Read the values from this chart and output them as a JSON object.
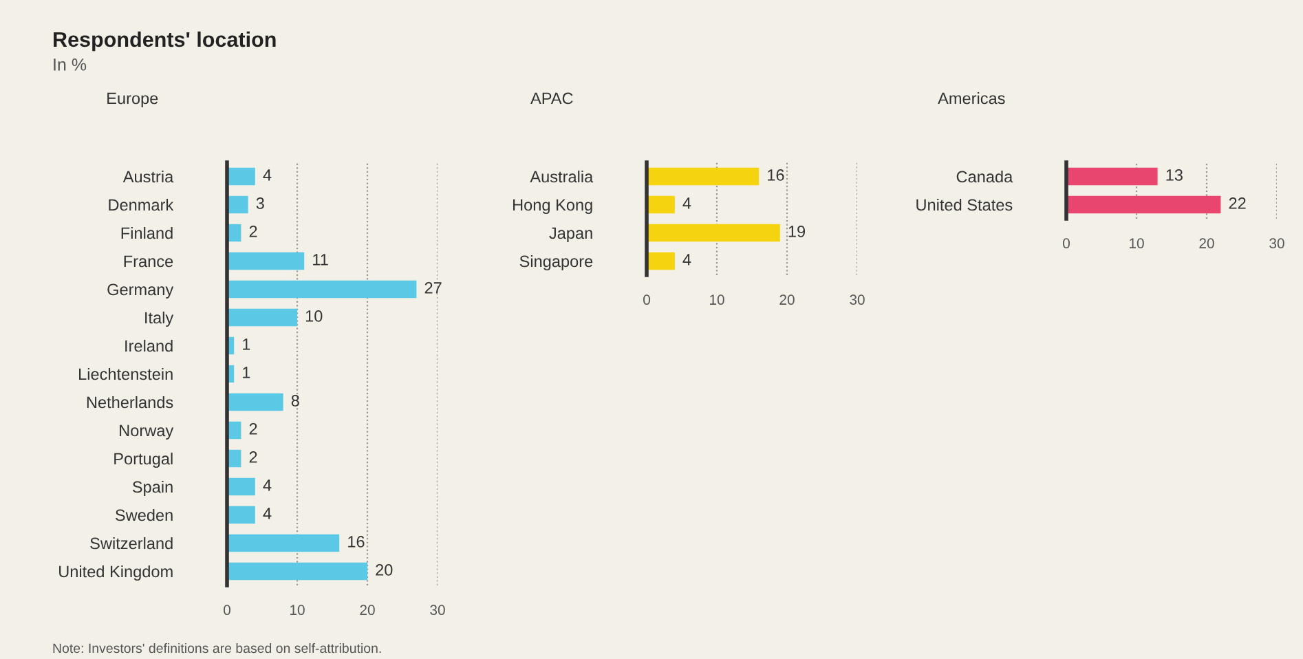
{
  "chart_data": [
    {
      "type": "bar",
      "orientation": "horizontal",
      "title": "Europe",
      "annotations": [
        "Respondents' location",
        "In %",
        "Note: Investors' definitions are based on self-attribution."
      ],
      "categories": [
        "Austria",
        "Denmark",
        "Finland",
        "France",
        "Germany",
        "Italy",
        "Ireland",
        "Liechtenstein",
        "Netherlands",
        "Norway",
        "Portugal",
        "Spain",
        "Sweden",
        "Switzerland",
        "United Kingdom"
      ],
      "values": [
        4,
        3,
        2,
        11,
        27,
        10,
        1,
        1,
        8,
        2,
        2,
        4,
        4,
        16,
        20
      ],
      "color": "#5bc8e6",
      "xlim": [
        0,
        30
      ],
      "xticks": [
        0,
        10,
        20,
        30
      ],
      "grid": "x",
      "data_labels": true
    },
    {
      "type": "bar",
      "orientation": "horizontal",
      "title": "APAC",
      "categories": [
        "Australia",
        "Hong Kong",
        "Japan",
        "Singapore"
      ],
      "values": [
        16,
        4,
        19,
        4
      ],
      "color": "#f5d40f",
      "xlim": [
        0,
        30
      ],
      "xticks": [
        0,
        10,
        20,
        30
      ],
      "grid": "x",
      "data_labels": true
    },
    {
      "type": "bar",
      "orientation": "horizontal",
      "title": "Americas",
      "categories": [
        "Canada",
        "United States"
      ],
      "values": [
        13,
        22
      ],
      "color": "#e8466e",
      "xlim": [
        0,
        30
      ],
      "xticks": [
        0,
        10,
        20,
        30
      ],
      "grid": "x",
      "data_labels": true
    }
  ]
}
